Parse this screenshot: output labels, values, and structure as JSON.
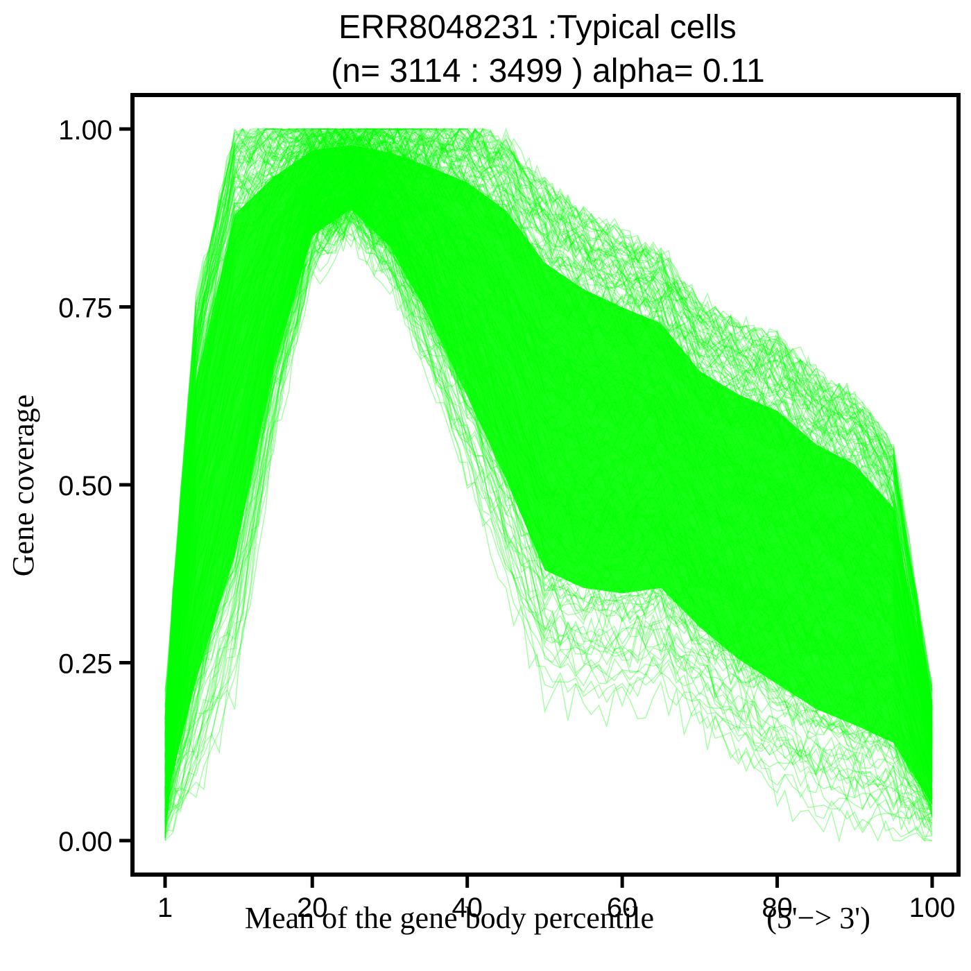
{
  "chart_data": {
    "type": "line",
    "title_line1": "ERR8048231 :Typical cells",
    "title_line2": "(n= 3114 : 3499 ) alpha= 0.11",
    "xlabel": "Mean of the gene body percentile",
    "xlabel_suffix": "(5'−> 3')",
    "ylabel": "Gene coverage",
    "xlim": [
      1,
      100
    ],
    "ylim": [
      0,
      1
    ],
    "x_ticks": [
      1,
      20,
      40,
      60,
      80,
      100
    ],
    "x_tick_labels": [
      "1",
      "20",
      "40",
      "60",
      "80",
      "100"
    ],
    "y_ticks": [
      0,
      0.25,
      0.5,
      0.75,
      1.0
    ],
    "y_tick_labels": [
      "0.00",
      "0.25",
      "0.50",
      "0.75",
      "1.00"
    ],
    "line_color": "#00ff00",
    "line_alpha": 0.11,
    "n_cells": 3114,
    "n_total": 3499,
    "grid": false,
    "legend": "none",
    "series_profile": {
      "x": [
        1,
        5,
        10,
        15,
        20,
        25,
        30,
        35,
        40,
        45,
        50,
        55,
        60,
        65,
        70,
        75,
        80,
        85,
        90,
        95,
        100
      ],
      "upper": [
        0.2,
        0.75,
        1.0,
        1.0,
        1.0,
        1.0,
        1.0,
        1.0,
        1.0,
        0.98,
        0.92,
        0.88,
        0.85,
        0.82,
        0.75,
        0.72,
        0.7,
        0.65,
        0.62,
        0.55,
        0.2
      ],
      "lower": [
        0.0,
        0.05,
        0.2,
        0.55,
        0.8,
        0.85,
        0.78,
        0.65,
        0.5,
        0.35,
        0.2,
        0.18,
        0.18,
        0.2,
        0.15,
        0.1,
        0.06,
        0.03,
        0.01,
        0.0,
        0.0
      ],
      "mean": [
        0.05,
        0.4,
        0.7,
        0.9,
        0.99,
        1.0,
        1.0,
        0.98,
        0.95,
        0.88,
        0.78,
        0.68,
        0.58,
        0.5,
        0.43,
        0.37,
        0.3,
        0.24,
        0.17,
        0.1,
        0.05
      ]
    }
  }
}
